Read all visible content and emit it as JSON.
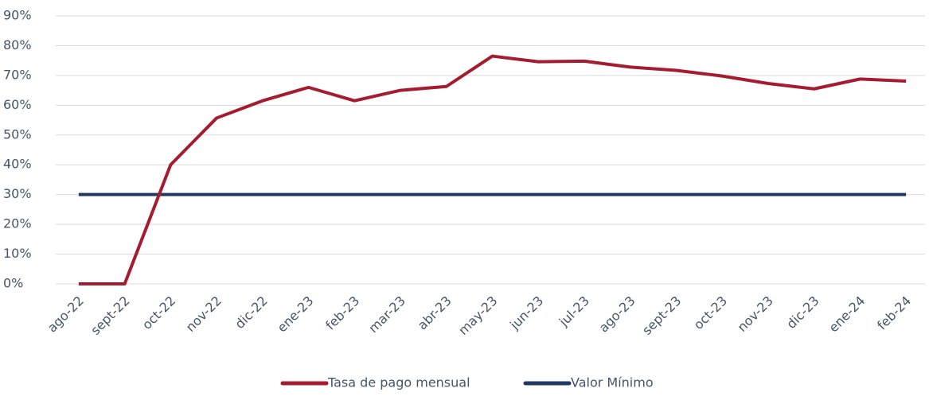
{
  "chart_data": {
    "type": "line",
    "categories": [
      "ago-22",
      "sept-22",
      "oct-22",
      "nov-22",
      "dic-22",
      "ene-23",
      "feb-23",
      "mar-23",
      "abr-23",
      "may-23",
      "jun-23",
      "jul-23",
      "ago-23",
      "sept-23",
      "oct-23",
      "nov-23",
      "dic-23",
      "ene-24",
      "feb-24"
    ],
    "series": [
      {
        "name": "Tasa de pago mensual",
        "color": "#a51c30",
        "values": [
          0,
          0,
          40,
          55.7,
          61.5,
          66,
          61.5,
          65,
          66.3,
          76.5,
          74.6,
          74.8,
          72.8,
          71.7,
          69.8,
          67.3,
          65.5,
          68.8,
          68.1
        ]
      },
      {
        "name": "Valor Mínimo",
        "color": "#203864",
        "values": [
          30,
          30,
          30,
          30,
          30,
          30,
          30,
          30,
          30,
          30,
          30,
          30,
          30,
          30,
          30,
          30,
          30,
          30,
          30
        ]
      }
    ],
    "ylim": [
      0,
      90
    ],
    "yticks": [
      {
        "value": 0,
        "label": "0%"
      },
      {
        "value": 10,
        "label": "10%"
      },
      {
        "value": 20,
        "label": "20%"
      },
      {
        "value": 30,
        "label": "30%"
      },
      {
        "value": 40,
        "label": "40%"
      },
      {
        "value": 50,
        "label": "50%"
      },
      {
        "value": 60,
        "label": "60%"
      },
      {
        "value": 70,
        "label": "70%"
      },
      {
        "value": 80,
        "label": "80%"
      },
      {
        "value": 90,
        "label": "90%"
      }
    ],
    "grid": true,
    "legend": "bottom"
  }
}
